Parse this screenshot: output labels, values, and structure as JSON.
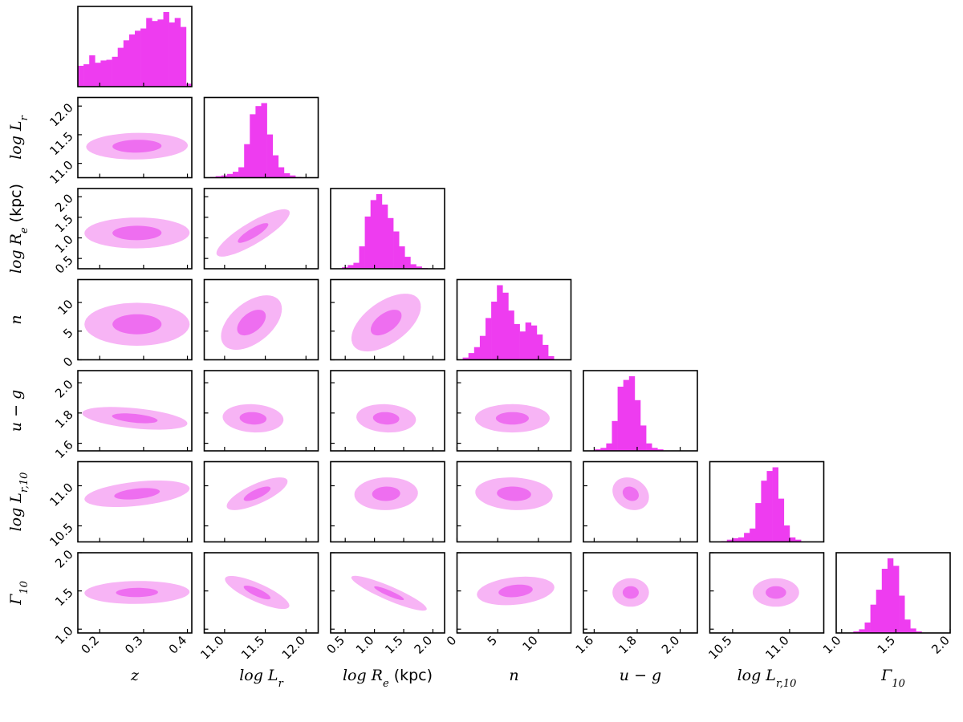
{
  "colors": {
    "hist": "#ee3cf0",
    "level_outer": "#f7b4f5",
    "level_inner": "#ee6ef0",
    "axis": "#000000"
  },
  "chart_data": {
    "type": "corner",
    "params": [
      {
        "key": "z",
        "label_sym": "z",
        "label_unit": "",
        "range": [
          0.15,
          0.41
        ],
        "ticks": [
          0.2,
          0.3,
          0.4
        ],
        "tick_labels": [
          "0.2",
          "0.3",
          "0.4"
        ]
      },
      {
        "key": "logLr",
        "label_sym": "log L_r",
        "label_unit": "",
        "range": [
          10.75,
          12.15
        ],
        "ticks": [
          11.0,
          11.5,
          12.0
        ],
        "tick_labels": [
          "11.0",
          "11.5",
          "12.0"
        ]
      },
      {
        "key": "logRe",
        "label_sym": "log R_e",
        "label_unit": "(kpc)",
        "range": [
          0.25,
          2.2
        ],
        "ticks": [
          0.5,
          1.0,
          1.5,
          2.0
        ],
        "tick_labels": [
          "0.5",
          "1.0",
          "1.5",
          "2.0"
        ]
      },
      {
        "key": "n",
        "label_sym": "n",
        "label_unit": "",
        "range": [
          0,
          14
        ],
        "ticks": [
          0,
          5,
          10
        ],
        "tick_labels": [
          "0",
          "5",
          "10"
        ]
      },
      {
        "key": "ug",
        "label_sym": "u − g",
        "label_unit": "",
        "range": [
          1.55,
          2.08
        ],
        "ticks": [
          1.6,
          1.8,
          2.0
        ],
        "tick_labels": [
          "1.6",
          "1.8",
          "2.0"
        ]
      },
      {
        "key": "logLr10",
        "label_sym": "log L_r,10",
        "label_unit": "",
        "range": [
          10.3,
          11.3
        ],
        "ticks": [
          10.5,
          11.0
        ],
        "tick_labels": [
          "10.5",
          "11.0"
        ]
      },
      {
        "key": "G10",
        "label_sym": "Γ_10",
        "label_unit": "",
        "range": [
          0.95,
          2.0
        ],
        "ticks": [
          1.0,
          1.5,
          2.0
        ],
        "tick_labels": [
          "1.0",
          "1.5",
          "2.0"
        ]
      }
    ],
    "histograms": [
      {
        "param": "z",
        "bins": 20,
        "counts": [
          0.28,
          0.3,
          0.42,
          0.32,
          0.35,
          0.36,
          0.4,
          0.52,
          0.62,
          0.7,
          0.75,
          0.78,
          0.92,
          0.88,
          0.9,
          1.0,
          0.86,
          0.92,
          0.8,
          0.04
        ]
      },
      {
        "param": "logLr",
        "bins": 20,
        "counts": [
          0,
          0.01,
          0.02,
          0.03,
          0.05,
          0.08,
          0.14,
          0.45,
          0.85,
          0.96,
          1.0,
          0.58,
          0.3,
          0.14,
          0.06,
          0.03,
          0.01,
          0,
          0,
          0
        ]
      },
      {
        "param": "logRe",
        "bins": 20,
        "counts": [
          0,
          0,
          0.02,
          0.05,
          0.08,
          0.3,
          0.7,
          0.92,
          1.0,
          0.86,
          0.68,
          0.5,
          0.3,
          0.16,
          0.06,
          0.03,
          0.01,
          0,
          0,
          0
        ]
      },
      {
        "param": "n",
        "bins": 20,
        "counts": [
          0,
          0.03,
          0.09,
          0.17,
          0.32,
          0.56,
          0.78,
          1.0,
          0.9,
          0.66,
          0.48,
          0.38,
          0.5,
          0.46,
          0.34,
          0.2,
          0.05,
          0,
          0,
          0
        ]
      },
      {
        "param": "ug",
        "bins": 20,
        "counts": [
          0,
          0,
          0.02,
          0.04,
          0.1,
          0.4,
          0.86,
          0.95,
          1.0,
          0.68,
          0.34,
          0.1,
          0.04,
          0.02,
          0,
          0,
          0,
          0,
          0,
          0
        ]
      },
      {
        "param": "logLr10",
        "bins": 20,
        "counts": [
          0,
          0,
          0.01,
          0.03,
          0.05,
          0.06,
          0.12,
          0.18,
          0.52,
          0.82,
          0.95,
          1.0,
          0.58,
          0.22,
          0.06,
          0.03,
          0,
          0,
          0,
          0
        ]
      },
      {
        "param": "G10",
        "bins": 20,
        "counts": [
          0,
          0,
          0,
          0.02,
          0.05,
          0.14,
          0.38,
          0.58,
          0.86,
          1.0,
          0.9,
          0.5,
          0.18,
          0.06,
          0.02,
          0,
          0,
          0,
          0,
          0
        ]
      }
    ],
    "contours": [
      {
        "x": "z",
        "y": "logLr",
        "center": [
          0.285,
          11.3
        ],
        "sigma_x": 0.08,
        "sigma_y": 0.16,
        "rho": 0.05,
        "outer_scale": 1.45,
        "inner_scale": 0.7
      },
      {
        "x": "z",
        "y": "logRe",
        "center": [
          0.285,
          1.12
        ],
        "sigma_x": 0.08,
        "sigma_y": 0.25,
        "rho": 0.02,
        "outer_scale": 1.5,
        "inner_scale": 0.7
      },
      {
        "x": "z",
        "y": "n",
        "center": [
          0.285,
          6.2
        ],
        "sigma_x": 0.08,
        "sigma_y": 2.5,
        "rho": 0.0,
        "outer_scale": 1.5,
        "inner_scale": 0.7
      },
      {
        "x": "logLr",
        "y": "logRe",
        "center": [
          11.35,
          1.12
        ],
        "sigma_x": 0.25,
        "sigma_y": 0.32,
        "rho": 0.85,
        "outer_scale": 1.8,
        "inner_scale": 0.75
      },
      {
        "x": "logLr",
        "y": "n",
        "center": [
          11.33,
          6.5
        ],
        "sigma_x": 0.22,
        "sigma_y": 2.8,
        "rho": 0.5,
        "outer_scale": 1.7,
        "inner_scale": 0.8
      },
      {
        "x": "logRe",
        "y": "n",
        "center": [
          1.2,
          6.5
        ],
        "sigma_x": 0.33,
        "sigma_y": 2.8,
        "rho": 0.55,
        "outer_scale": 1.8,
        "inner_scale": 0.8
      },
      {
        "x": "z",
        "y": "ug",
        "center": [
          0.28,
          1.765
        ],
        "sigma_x": 0.08,
        "sigma_y": 0.05,
        "rho": -0.45,
        "outer_scale": 1.5,
        "inner_scale": 0.65
      },
      {
        "x": "logLr",
        "y": "ug",
        "center": [
          11.35,
          1.765
        ],
        "sigma_x": 0.22,
        "sigma_y": 0.055,
        "rho": -0.1,
        "outer_scale": 1.7,
        "inner_scale": 0.75
      },
      {
        "x": "logRe",
        "y": "ug",
        "center": [
          1.2,
          1.765
        ],
        "sigma_x": 0.3,
        "sigma_y": 0.055,
        "rho": -0.1,
        "outer_scale": 1.7,
        "inner_scale": 0.75
      },
      {
        "x": "n",
        "y": "ug",
        "center": [
          6.8,
          1.765
        ],
        "sigma_x": 2.7,
        "sigma_y": 0.055,
        "rho": 0.0,
        "outer_scale": 1.7,
        "inner_scale": 0.75
      },
      {
        "x": "z",
        "y": "logLr10",
        "center": [
          0.285,
          10.9
        ],
        "sigma_x": 0.08,
        "sigma_y": 0.11,
        "rho": 0.4,
        "outer_scale": 1.5,
        "inner_scale": 0.65
      },
      {
        "x": "logLr",
        "y": "logLr10",
        "center": [
          11.4,
          10.9
        ],
        "sigma_x": 0.22,
        "sigma_y": 0.12,
        "rho": 0.75,
        "outer_scale": 1.7,
        "inner_scale": 0.75
      },
      {
        "x": "logRe",
        "y": "logLr10",
        "center": [
          1.2,
          10.9
        ],
        "sigma_x": 0.32,
        "sigma_y": 0.12,
        "rho": 0.05,
        "outer_scale": 1.7,
        "inner_scale": 0.75
      },
      {
        "x": "n",
        "y": "logLr10",
        "center": [
          7.0,
          10.9
        ],
        "sigma_x": 2.8,
        "sigma_y": 0.12,
        "rho": -0.1,
        "outer_scale": 1.7,
        "inner_scale": 0.75
      },
      {
        "x": "ug",
        "y": "logLr10",
        "center": [
          1.77,
          10.9
        ],
        "sigma_x": 0.05,
        "sigma_y": 0.12,
        "rho": -0.2,
        "outer_scale": 1.7,
        "inner_scale": 0.75
      },
      {
        "x": "z",
        "y": "G10",
        "center": [
          0.285,
          1.48
        ],
        "sigma_x": 0.08,
        "sigma_y": 0.1,
        "rho": 0.05,
        "outer_scale": 1.5,
        "inner_scale": 0.6
      },
      {
        "x": "logLr",
        "y": "G10",
        "center": [
          11.4,
          1.48
        ],
        "sigma_x": 0.22,
        "sigma_y": 0.12,
        "rho": -0.8,
        "outer_scale": 1.8,
        "inner_scale": 0.75
      },
      {
        "x": "logRe",
        "y": "G10",
        "center": [
          1.25,
          1.47
        ],
        "sigma_x": 0.34,
        "sigma_y": 0.12,
        "rho": -0.9,
        "outer_scale": 1.9,
        "inner_scale": 0.75
      },
      {
        "x": "n",
        "y": "G10",
        "center": [
          7.2,
          1.5
        ],
        "sigma_x": 2.8,
        "sigma_y": 0.11,
        "rho": 0.25,
        "outer_scale": 1.7,
        "inner_scale": 0.75
      },
      {
        "x": "ug",
        "y": "G10",
        "center": [
          1.77,
          1.48
        ],
        "sigma_x": 0.05,
        "sigma_y": 0.11,
        "rho": 0.0,
        "outer_scale": 1.7,
        "inner_scale": 0.75
      },
      {
        "x": "logLr10",
        "y": "G10",
        "center": [
          10.88,
          1.48
        ],
        "sigma_x": 0.12,
        "sigma_y": 0.11,
        "rho": 0.0,
        "outer_scale": 1.7,
        "inner_scale": 0.75
      }
    ]
  }
}
